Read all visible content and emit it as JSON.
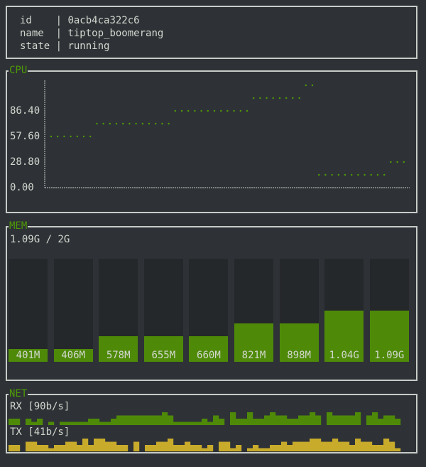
{
  "info": {
    "rows": [
      {
        "key": "id",
        "value": "0acb4ca322c6"
      },
      {
        "key": "name",
        "value": "tiptop_boomerang"
      },
      {
        "key": "state",
        "value": "running"
      }
    ]
  },
  "cpu": {
    "title": "CPU",
    "chart_data": {
      "type": "scatter",
      "yticks": [
        "0.00",
        "28.80",
        "57.60",
        "86.40"
      ],
      "ylim": [
        0,
        121
      ],
      "values": [
        57.6,
        57.6,
        57.6,
        57.6,
        57.6,
        57.6,
        57.6,
        72,
        72,
        72,
        72,
        72,
        72,
        72,
        72,
        72,
        72,
        72,
        72,
        86.4,
        86.4,
        86.4,
        86.4,
        86.4,
        86.4,
        86.4,
        86.4,
        86.4,
        86.4,
        86.4,
        86.4,
        100.8,
        100.8,
        100.8,
        100.8,
        100.8,
        100.8,
        100.8,
        100.8,
        115.2,
        115.2,
        14.4,
        14.4,
        14.4,
        14.4,
        14.4,
        14.4,
        14.4,
        14.4,
        14.4,
        14.4,
        14.4,
        28.8,
        28.8,
        28.8
      ],
      "color": "#4e9a06"
    }
  },
  "mem": {
    "title": "MEM",
    "summary": "1.09G / 2G",
    "bars": [
      {
        "label": "401M",
        "level": 0.125
      },
      {
        "label": "406M",
        "level": 0.125
      },
      {
        "label": "578M",
        "level": 0.25
      },
      {
        "label": "655M",
        "level": 0.25
      },
      {
        "label": "660M",
        "level": 0.25
      },
      {
        "label": "821M",
        "level": 0.375
      },
      {
        "label": "898M",
        "level": 0.375
      },
      {
        "label": "1.04G",
        "level": 0.5
      },
      {
        "label": "1.09G",
        "level": 0.5
      }
    ],
    "color": "#4e8a08"
  },
  "net": {
    "title": "NET",
    "rx_label": "RX [90b/s]",
    "tx_label": "TX [41b/s]",
    "rx": [
      2,
      2,
      0,
      2,
      1,
      2,
      0,
      1,
      0,
      1,
      1,
      1,
      1,
      1,
      2,
      2,
      1,
      1,
      2,
      3,
      3,
      3,
      3,
      3,
      3,
      3,
      3,
      4,
      3,
      1,
      1,
      1,
      1,
      1,
      2,
      1,
      3,
      2,
      0,
      4,
      2,
      2,
      4,
      2,
      2,
      3,
      4,
      3,
      3,
      2,
      2,
      3,
      3,
      4,
      3,
      0,
      4,
      3,
      3,
      3,
      3,
      4,
      0,
      3,
      4,
      2,
      3,
      3,
      2
    ],
    "tx": [
      2,
      2,
      0,
      3,
      3,
      2,
      2,
      1,
      2,
      2,
      3,
      3,
      2,
      4,
      2,
      4,
      4,
      3,
      3,
      2,
      2,
      0,
      3,
      0,
      2,
      2,
      3,
      3,
      4,
      2,
      2,
      3,
      2,
      2,
      1,
      2,
      0,
      3,
      3,
      1,
      2,
      0,
      1,
      2,
      1,
      1,
      2,
      2,
      3,
      2,
      3,
      3,
      3,
      4,
      4,
      3,
      3,
      4,
      3,
      3,
      2,
      4,
      3,
      3,
      2,
      2,
      4,
      3,
      1
    ],
    "rx_color": "#4e8a08",
    "tx_color": "#c9ab2c"
  }
}
